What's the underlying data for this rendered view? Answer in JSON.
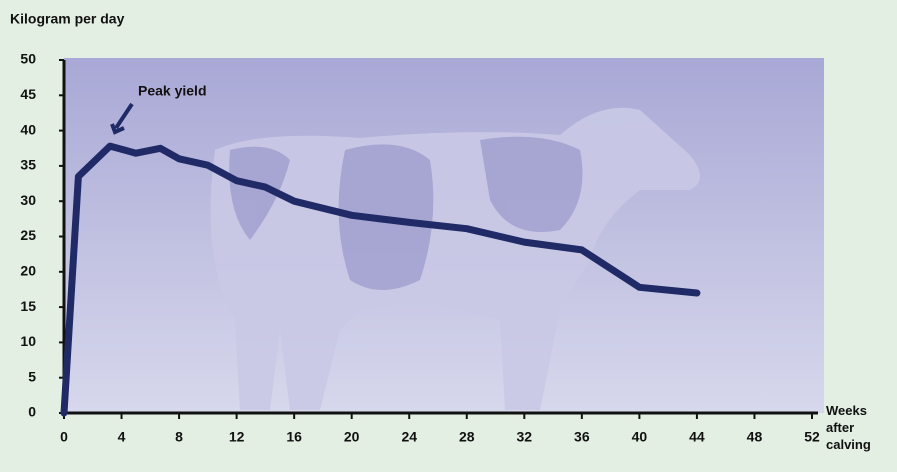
{
  "chart_data": {
    "type": "line",
    "y_label": "Kilogram per day",
    "x_label": "Weeks after calving",
    "annotation": "Peak yield",
    "x": [
      0,
      1,
      3.2,
      5,
      6.7,
      8,
      10,
      12,
      14,
      16,
      20,
      24,
      28,
      32,
      36,
      40,
      44
    ],
    "values": [
      0,
      33.5,
      37.8,
      36.8,
      37.5,
      36,
      35.1,
      32.9,
      32,
      30,
      28,
      27,
      26.1,
      24.2,
      23.1,
      17.8,
      17
    ],
    "color": "#1f2a66",
    "xlim": [
      0,
      52
    ],
    "xticks": [
      0,
      4,
      8,
      12,
      16,
      20,
      24,
      28,
      32,
      36,
      40,
      44,
      48,
      52
    ],
    "ylim": [
      0,
      50
    ],
    "yticks": [
      0,
      5,
      10,
      15,
      20,
      25,
      30,
      35,
      40,
      45,
      50
    ]
  }
}
